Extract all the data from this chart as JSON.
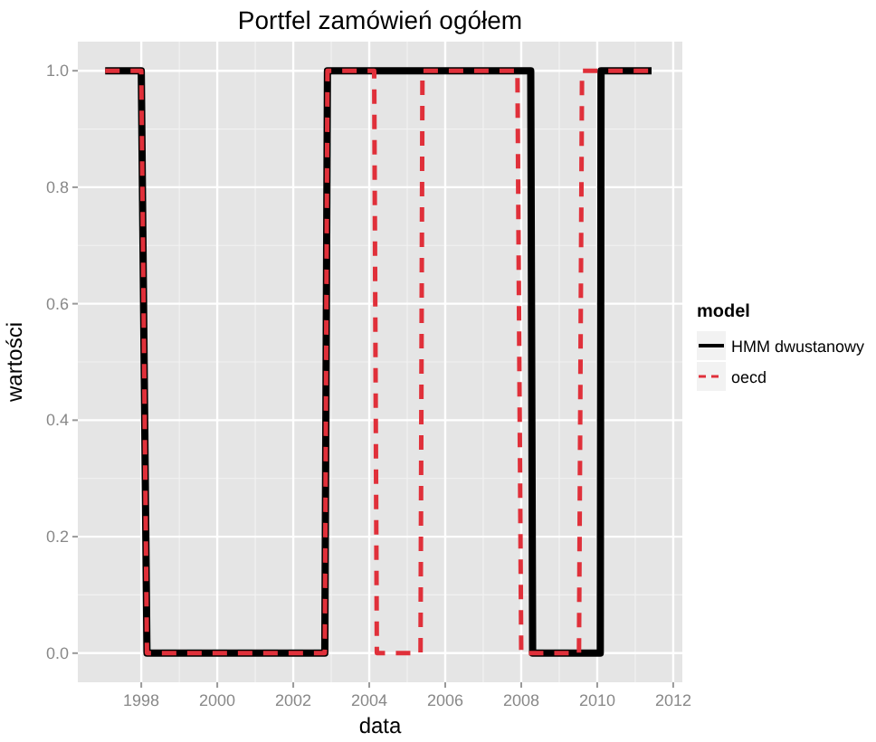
{
  "chart_data": {
    "type": "line",
    "title": "Portfel zamówień ogółem",
    "xlabel": "data",
    "ylabel": "wartości",
    "legend_title": "model",
    "legend": "right",
    "grid": true,
    "marker": "none",
    "xlim": [
      1996.33,
      2012.24
    ],
    "xticks": [
      1998,
      2000,
      2002,
      2004,
      2006,
      2008,
      2010,
      2012
    ],
    "ylim": [
      -0.05,
      1.05
    ],
    "yticks": [
      {
        "value": 0,
        "label": "0.0"
      },
      {
        "value": 0.2,
        "label": "0.2"
      },
      {
        "value": 0.4,
        "label": "0.4"
      },
      {
        "value": 0.6,
        "label": "0.6"
      },
      {
        "value": 0.8,
        "label": "0.8"
      },
      {
        "value": 1,
        "label": "1.0"
      }
    ],
    "series": [
      {
        "name": "HMM dwustanowy",
        "color": "#000000",
        "line_style": "solid",
        "x": [
          1997.05,
          1998.0,
          1998.15,
          2002.83,
          2002.9,
          2008.25,
          2008.3,
          2010.08,
          2010.1,
          2011.43
        ],
        "values": [
          1,
          1,
          0,
          0,
          1,
          1,
          0,
          0,
          1,
          1
        ]
      },
      {
        "name": "oecd",
        "color": "#e0303a",
        "line_style": "dashed",
        "x": [
          1997.05,
          1998.0,
          1998.15,
          2002.83,
          2002.9,
          2004.13,
          2004.2,
          2005.35,
          2005.4,
          2007.9,
          2008.0,
          2009.52,
          2009.6,
          2011.43
        ],
        "values": [
          1,
          1,
          0,
          0,
          1,
          1,
          0,
          0,
          1,
          1,
          0,
          0,
          1,
          1
        ]
      }
    ]
  }
}
